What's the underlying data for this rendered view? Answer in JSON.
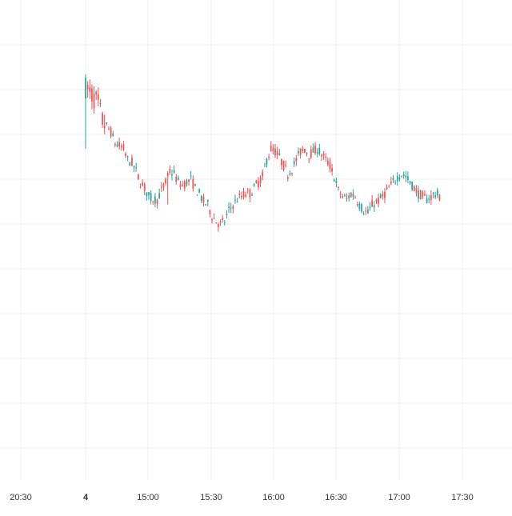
{
  "colors": {
    "background": "#ffffff",
    "grid": "#efefef",
    "up": "#26a69a",
    "down": "#ef5350",
    "label": "#333333"
  },
  "chart_data": {
    "type": "candlestick",
    "title": "",
    "xlabel": "",
    "ylabel": "",
    "grid": true,
    "legend": "none",
    "time_ticks": [
      "20:30",
      "4",
      "15:00",
      "15:30",
      "16:00",
      "16:30",
      "17:00",
      "17:30"
    ],
    "bold_ticks": [
      "4"
    ],
    "bar_interval_minutes": 1,
    "range_minutes_per_tick": 30,
    "session_start": "4 14:30",
    "ylim_relative": [
      0,
      100
    ],
    "close_profile": [
      [
        0,
        86
      ],
      [
        2,
        84
      ],
      [
        4,
        82
      ],
      [
        6,
        80
      ],
      [
        8,
        74
      ],
      [
        10,
        72
      ],
      [
        12,
        70
      ],
      [
        14,
        66
      ],
      [
        16,
        65
      ],
      [
        18,
        64
      ],
      [
        20,
        60
      ],
      [
        22,
        59
      ],
      [
        24,
        56
      ],
      [
        26,
        52
      ],
      [
        28,
        50
      ],
      [
        30,
        47
      ],
      [
        32,
        46
      ],
      [
        34,
        46
      ],
      [
        36,
        49
      ],
      [
        38,
        52
      ],
      [
        40,
        56
      ],
      [
        42,
        55
      ],
      [
        44,
        52
      ],
      [
        46,
        51
      ],
      [
        48,
        52
      ],
      [
        50,
        53
      ],
      [
        52,
        50
      ],
      [
        54,
        48
      ],
      [
        56,
        45
      ],
      [
        58,
        44
      ],
      [
        60,
        40
      ],
      [
        62,
        38
      ],
      [
        64,
        37
      ],
      [
        66,
        38
      ],
      [
        68,
        42
      ],
      [
        70,
        44
      ],
      [
        72,
        46
      ],
      [
        74,
        47
      ],
      [
        76,
        48
      ],
      [
        78,
        48
      ],
      [
        80,
        50
      ],
      [
        82,
        52
      ],
      [
        84,
        54
      ],
      [
        86,
        60
      ],
      [
        88,
        64
      ],
      [
        90,
        63
      ],
      [
        92,
        61
      ],
      [
        94,
        58
      ],
      [
        96,
        55
      ],
      [
        98,
        57
      ],
      [
        100,
        60
      ],
      [
        102,
        63
      ],
      [
        104,
        64
      ],
      [
        106,
        62
      ],
      [
        108,
        63
      ],
      [
        110,
        64
      ],
      [
        112,
        62
      ],
      [
        114,
        60
      ],
      [
        116,
        58
      ],
      [
        118,
        54
      ],
      [
        120,
        49
      ],
      [
        122,
        47
      ],
      [
        124,
        46
      ],
      [
        126,
        48
      ],
      [
        128,
        47
      ],
      [
        130,
        44
      ],
      [
        132,
        42
      ],
      [
        134,
        41
      ],
      [
        136,
        44
      ],
      [
        138,
        45
      ],
      [
        140,
        46
      ],
      [
        142,
        48
      ],
      [
        144,
        50
      ],
      [
        146,
        52
      ],
      [
        148,
        54
      ],
      [
        150,
        55
      ],
      [
        152,
        54
      ],
      [
        154,
        52
      ],
      [
        156,
        50
      ],
      [
        158,
        48
      ],
      [
        160,
        47
      ],
      [
        162,
        46
      ],
      [
        164,
        47
      ],
      [
        166,
        48
      ],
      [
        168,
        47
      ]
    ]
  }
}
